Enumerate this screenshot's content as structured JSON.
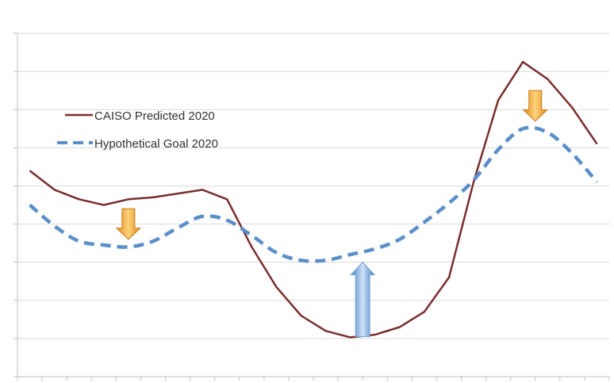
{
  "chart_data": {
    "type": "line",
    "title": "",
    "xlabel": "",
    "ylabel": "",
    "hours": 24,
    "ylim": [
      0,
      9
    ],
    "grid": true,
    "legend_position": "top-left",
    "series": [
      {
        "name": "CAISO Predicted 2020",
        "color": "#7a2e2e",
        "style": "solid",
        "values": [
          5.4,
          4.9,
          4.65,
          4.5,
          4.65,
          4.7,
          4.8,
          4.9,
          4.65,
          3.4,
          2.35,
          1.6,
          1.2,
          1.03,
          1.1,
          1.3,
          1.7,
          2.6,
          5.1,
          7.25,
          8.25,
          7.8,
          7.05,
          6.1
        ]
      },
      {
        "name": "Hypothetical Goal 2020",
        "color": "#5b8fc9",
        "style": "dashed",
        "values": [
          4.5,
          3.95,
          3.55,
          3.45,
          3.4,
          3.55,
          3.9,
          4.2,
          4.1,
          3.7,
          3.25,
          3.05,
          3.05,
          3.2,
          3.35,
          3.6,
          4.05,
          4.55,
          5.15,
          5.95,
          6.5,
          6.4,
          5.85,
          5.1
        ]
      }
    ],
    "annotations": [
      {
        "name": "arrow-down-left",
        "direction": "down",
        "color": "#f0a030",
        "hour": 4,
        "y_top": 4.4,
        "y_bottom": 3.6
      },
      {
        "name": "arrow-up-middle",
        "direction": "up",
        "color": "#5b9bd5",
        "hour": 13.5,
        "y_top": 3.0,
        "y_bottom": 1.05
      },
      {
        "name": "arrow-down-right",
        "direction": "down",
        "color": "#f0a030",
        "hour": 20.5,
        "y_top": 7.5,
        "y_bottom": 6.7
      }
    ]
  }
}
